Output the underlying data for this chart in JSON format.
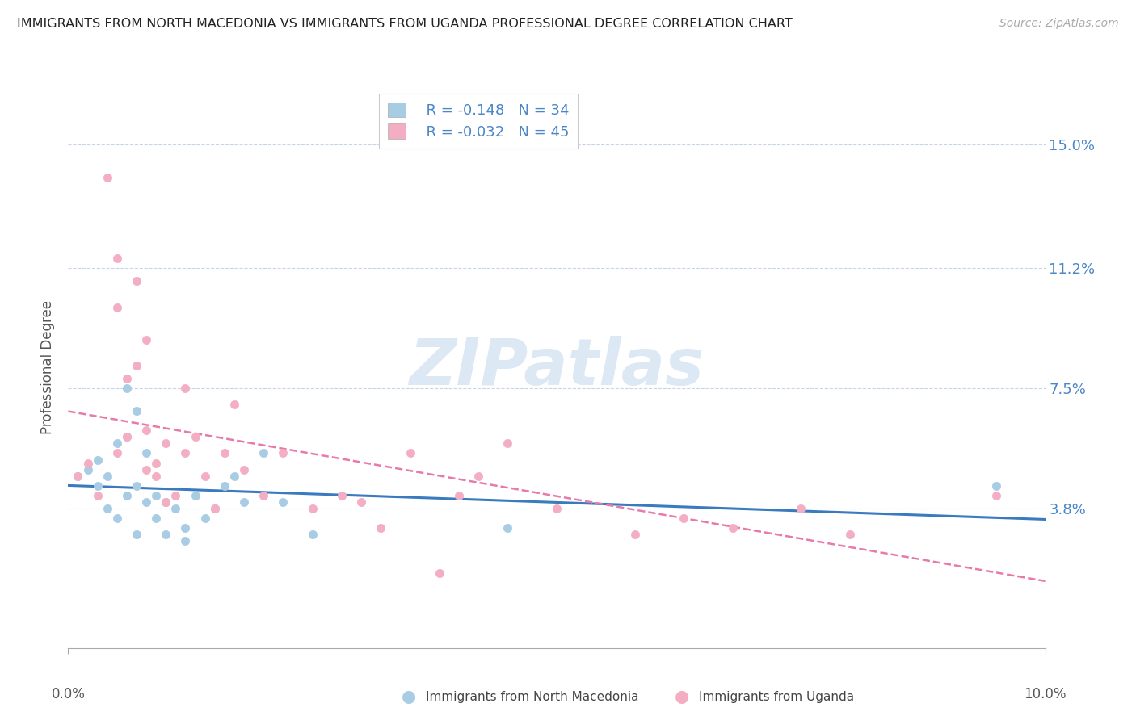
{
  "title": "IMMIGRANTS FROM NORTH MACEDONIA VS IMMIGRANTS FROM UGANDA PROFESSIONAL DEGREE CORRELATION CHART",
  "source": "Source: ZipAtlas.com",
  "ylabel": "Professional Degree",
  "y_ticks": [
    0.0,
    0.038,
    0.075,
    0.112,
    0.15
  ],
  "y_tick_labels": [
    "",
    "3.8%",
    "7.5%",
    "11.2%",
    "15.0%"
  ],
  "xlim": [
    0.0,
    0.1
  ],
  "ylim": [
    -0.005,
    0.168
  ],
  "legend_r1": "R = -0.148",
  "legend_n1": "N = 34",
  "legend_r2": "R = -0.032",
  "legend_n2": "N = 45",
  "color_blue": "#a8cce4",
  "color_pink": "#f4aec4",
  "trend_blue": "#3a7abf",
  "trend_pink": "#e87aaa",
  "north_macedonia_x": [
    0.001,
    0.002,
    0.003,
    0.003,
    0.004,
    0.004,
    0.005,
    0.005,
    0.006,
    0.006,
    0.006,
    0.007,
    0.007,
    0.007,
    0.008,
    0.008,
    0.009,
    0.009,
    0.01,
    0.01,
    0.011,
    0.012,
    0.012,
    0.013,
    0.014,
    0.015,
    0.016,
    0.017,
    0.018,
    0.02,
    0.022,
    0.025,
    0.045,
    0.095
  ],
  "north_macedonia_y": [
    0.048,
    0.05,
    0.045,
    0.053,
    0.048,
    0.038,
    0.058,
    0.035,
    0.042,
    0.06,
    0.075,
    0.045,
    0.03,
    0.068,
    0.04,
    0.055,
    0.042,
    0.035,
    0.04,
    0.03,
    0.038,
    0.032,
    0.028,
    0.042,
    0.035,
    0.038,
    0.045,
    0.048,
    0.04,
    0.055,
    0.04,
    0.03,
    0.032,
    0.045
  ],
  "uganda_x": [
    0.001,
    0.002,
    0.003,
    0.004,
    0.005,
    0.005,
    0.005,
    0.006,
    0.006,
    0.007,
    0.007,
    0.008,
    0.008,
    0.008,
    0.009,
    0.009,
    0.01,
    0.01,
    0.011,
    0.012,
    0.012,
    0.013,
    0.014,
    0.015,
    0.016,
    0.017,
    0.018,
    0.02,
    0.022,
    0.025,
    0.028,
    0.03,
    0.032,
    0.035,
    0.038,
    0.04,
    0.042,
    0.045,
    0.05,
    0.058,
    0.063,
    0.068,
    0.075,
    0.08,
    0.095
  ],
  "uganda_y": [
    0.048,
    0.052,
    0.042,
    0.14,
    0.055,
    0.1,
    0.115,
    0.06,
    0.078,
    0.082,
    0.108,
    0.05,
    0.09,
    0.062,
    0.048,
    0.052,
    0.04,
    0.058,
    0.042,
    0.075,
    0.055,
    0.06,
    0.048,
    0.038,
    0.055,
    0.07,
    0.05,
    0.042,
    0.055,
    0.038,
    0.042,
    0.04,
    0.032,
    0.055,
    0.018,
    0.042,
    0.048,
    0.058,
    0.038,
    0.03,
    0.035,
    0.032,
    0.038,
    0.03,
    0.042
  ]
}
